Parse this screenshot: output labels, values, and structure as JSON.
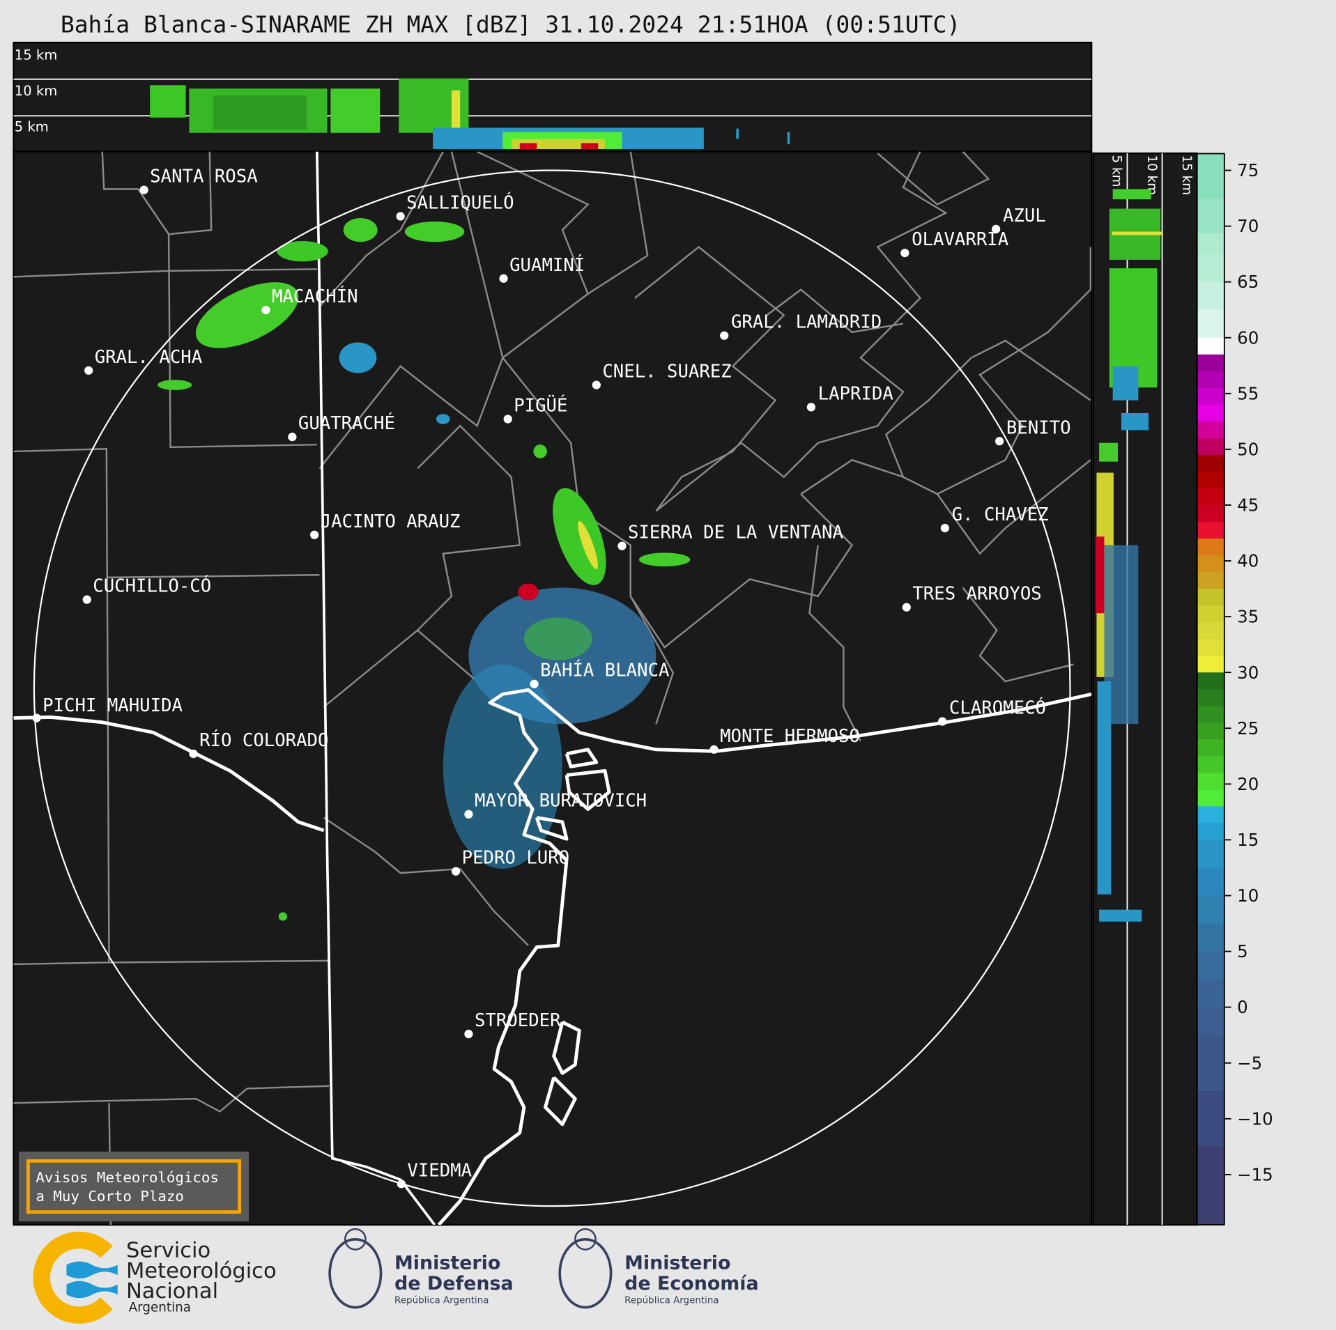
{
  "title": "Bahía Blanca-SINARAME ZH MAX [dBZ] 31.10.2024 21:51HOA (00:51UTC)",
  "top_panel": {
    "labels": [
      "15 km",
      "10 km",
      "5 km"
    ]
  },
  "side_panel": {
    "labels": [
      "5 km",
      "10 km",
      "15 km"
    ]
  },
  "cities": [
    "SANTA ROSA",
    "SALLIQUELÓ",
    "GUAMINÍ",
    "MACACHÍN",
    "GRAL. ACHA",
    "AZUL",
    "OLAVARRÍA",
    "GRAL. LAMADRID",
    "CNEL. SUAREZ",
    "LAPRIDA",
    "PIGÜÉ",
    "GUATRACHÉ",
    "BENITO",
    "G. CHAVEZ",
    "JACINTO ARAUZ",
    "SIERRA DE LA VENTANA",
    "CUCHILLO-CÓ",
    "TRES ARROYOS",
    "BAHÍA BLANCA",
    "PICHI MAHUIDA",
    "RÍO COLORADO",
    "CLAROMECÓ",
    "MONTE HERMOSO",
    "MAYOR BURATOVICH",
    "PEDRO LURO",
    "STROEDER",
    "VIEDMA"
  ],
  "warning_box": {
    "line1": "Avisos Meteorológicos",
    "line2": "a Muy Corto Plazo",
    "border_color": "#f5a400"
  },
  "colorbar": {
    "unit": "dBZ",
    "range": [
      -19.5,
      76.5
    ],
    "ticks": [
      "75",
      "70",
      "65",
      "60",
      "55",
      "50",
      "45",
      "40",
      "35",
      "30",
      "25",
      "20",
      "15",
      "10",
      "5",
      "0",
      "−5",
      "−10",
      "−15"
    ],
    "tick_values": [
      75,
      70,
      65,
      60,
      55,
      50,
      45,
      40,
      35,
      30,
      25,
      20,
      15,
      10,
      5,
      0,
      -5,
      -10,
      -15
    ],
    "bands": [
      [
        72.5,
        76.5,
        "#8adfbd"
      ],
      [
        69.4,
        72.5,
        "#98e3c5"
      ],
      [
        67.5,
        69.4,
        "#aeeace"
      ],
      [
        65,
        67.5,
        "#b8edd5"
      ],
      [
        62.5,
        65,
        "#c6f0df"
      ],
      [
        60,
        62.5,
        "#dcf5ea"
      ],
      [
        58.5,
        60,
        "#ffffff"
      ],
      [
        57,
        58.5,
        "#9b009b"
      ],
      [
        55.5,
        57,
        "#b300b3"
      ],
      [
        54,
        55.5,
        "#cc00cc"
      ],
      [
        52.5,
        54,
        "#e600e6"
      ],
      [
        51,
        52.5,
        "#d4009a"
      ],
      [
        49.5,
        51,
        "#c00060"
      ],
      [
        48,
        49.5,
        "#9c0000"
      ],
      [
        46.5,
        48,
        "#b00000"
      ],
      [
        45,
        46.5,
        "#c40010"
      ],
      [
        43.5,
        45,
        "#cc0022"
      ],
      [
        42,
        43.5,
        "#ea1030"
      ],
      [
        40.5,
        42,
        "#dc7a18"
      ],
      [
        39,
        40.5,
        "#d4901a"
      ],
      [
        37.5,
        39,
        "#cca020"
      ],
      [
        36,
        37.5,
        "#c4c42a"
      ],
      [
        34.5,
        36,
        "#d0d030"
      ],
      [
        33,
        34.5,
        "#d8d838"
      ],
      [
        31.5,
        33,
        "#e0e038"
      ],
      [
        30,
        31.5,
        "#eeee38"
      ],
      [
        28.5,
        30,
        "#226e1a"
      ],
      [
        27,
        28.5,
        "#2a801e"
      ],
      [
        25.5,
        27,
        "#309020"
      ],
      [
        24,
        25.5,
        "#38a020"
      ],
      [
        22.5,
        24,
        "#3eb422"
      ],
      [
        21,
        22.5,
        "#44c828"
      ],
      [
        19.5,
        21,
        "#4ede30"
      ],
      [
        18,
        19.5,
        "#50ec38"
      ],
      [
        16.5,
        18,
        "#2ab0dc"
      ],
      [
        15,
        16.5,
        "#26a0d0"
      ],
      [
        12.5,
        15,
        "#2a96c6"
      ],
      [
        10,
        12.5,
        "#2c88bc"
      ],
      [
        7.5,
        10,
        "#3080b0"
      ],
      [
        5,
        7.5,
        "#3474a4"
      ],
      [
        2.5,
        5,
        "#386c9c"
      ],
      [
        0,
        2.5,
        "#3a6496"
      ],
      [
        -2.5,
        0,
        "#3c5e90"
      ],
      [
        -7.5,
        -2.5,
        "#3c5888"
      ],
      [
        -12.5,
        -7.5,
        "#3c4c80"
      ],
      [
        -19.5,
        -12.5,
        "#3c4070"
      ]
    ]
  },
  "logos": {
    "smn": [
      "Servicio",
      "Meteorológico",
      "Nacional",
      "Argentina"
    ],
    "defensa": [
      "Ministerio",
      "de Defensa",
      "República Argentina"
    ],
    "economia": [
      "Ministerio",
      "de Economía",
      "República Argentina"
    ]
  }
}
